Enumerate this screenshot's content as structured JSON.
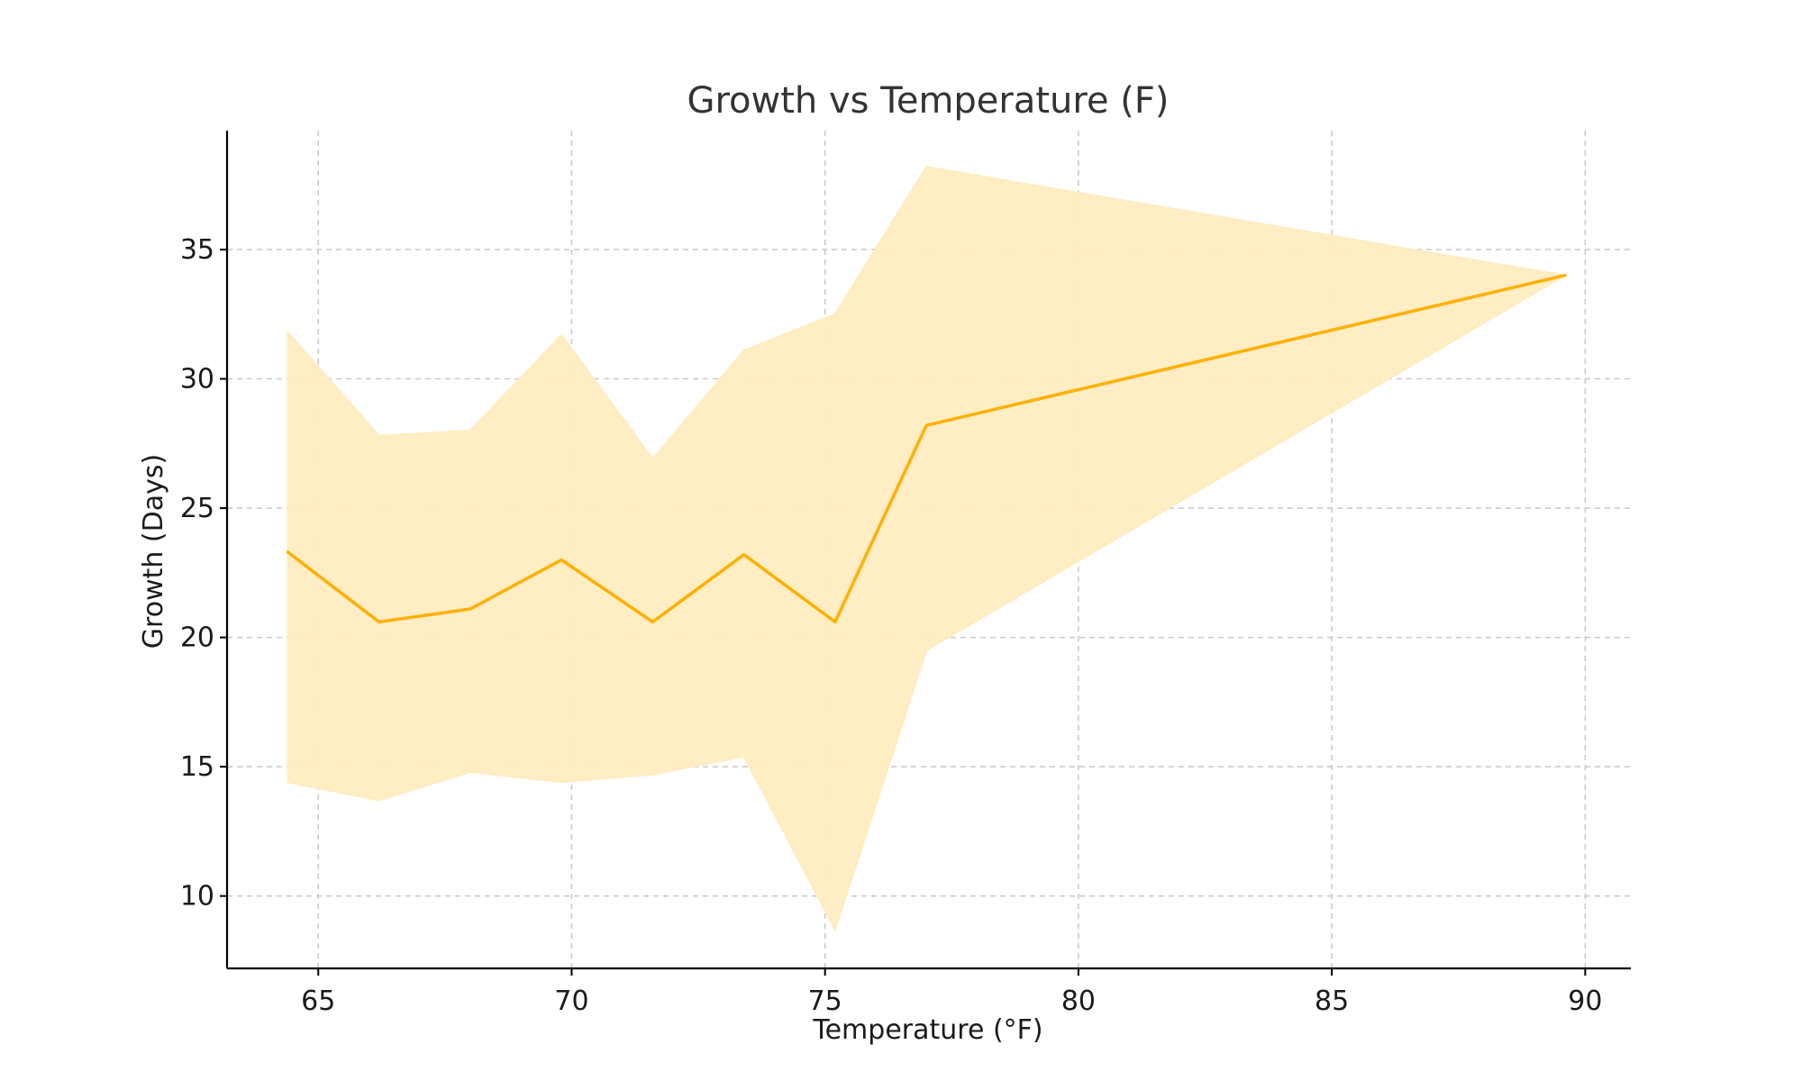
{
  "chart_data": {
    "type": "area",
    "title": "Growth vs Temperature (F)",
    "xlabel": "Temperature (°F)",
    "ylabel": "Growth (Days)",
    "xlim": [
      63.2,
      90.9
    ],
    "ylim": [
      7.2,
      39.6
    ],
    "xticks": [
      65,
      70,
      75,
      80,
      85,
      90
    ],
    "yticks": [
      10,
      15,
      20,
      25,
      30,
      35
    ],
    "grid": true,
    "series": [
      {
        "x": [
          64.4,
          66.2,
          68.0,
          69.8,
          71.6,
          73.4,
          75.2,
          77.0,
          89.6
        ],
        "y": [
          23.3,
          20.6,
          21.1,
          23.0,
          20.6,
          23.2,
          20.6,
          28.2,
          34.0
        ],
        "upper": [
          31.8,
          27.8,
          28.0,
          31.7,
          26.9,
          31.1,
          32.5,
          38.2,
          34.0
        ],
        "lower": [
          14.4,
          13.7,
          14.8,
          14.4,
          14.7,
          15.4,
          8.7,
          19.5,
          34.0
        ],
        "line_color": "#ffb000",
        "fill_color": "#ffecc0"
      }
    ]
  }
}
